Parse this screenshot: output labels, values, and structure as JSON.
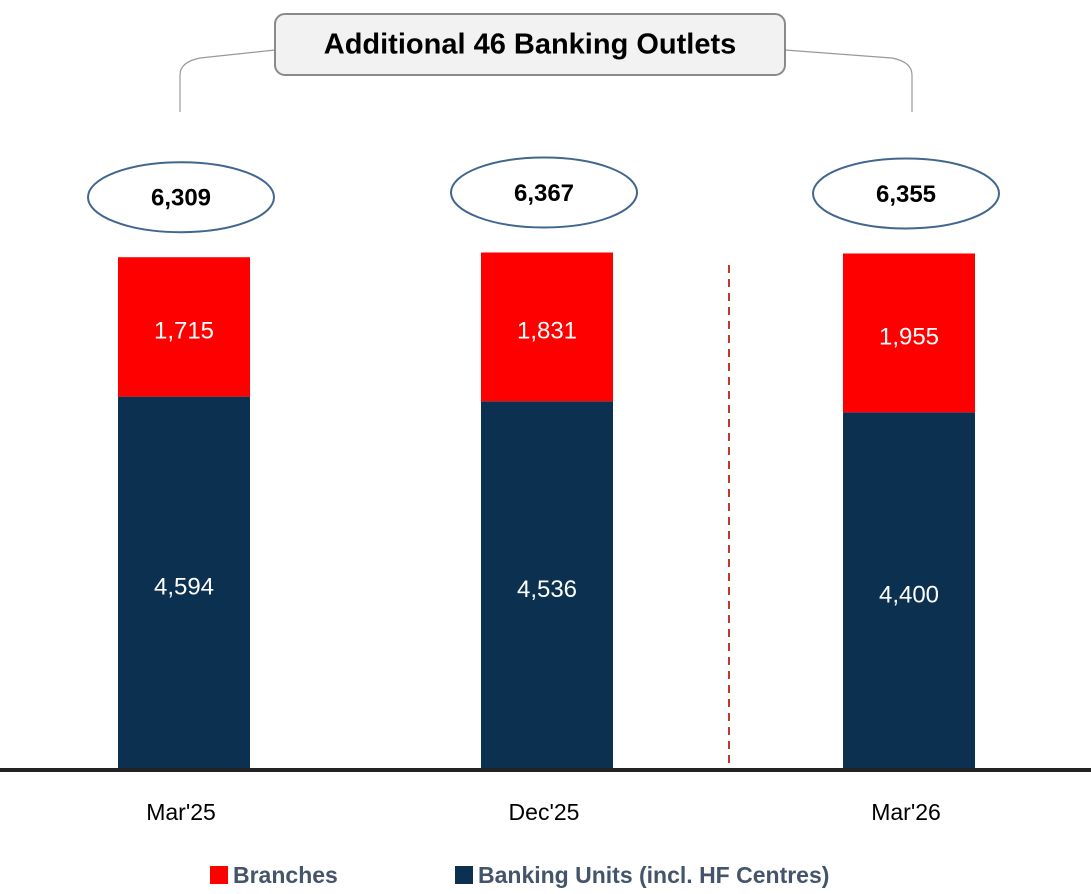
{
  "chart_data": {
    "type": "stacked_bar",
    "annotation": "Additional 46 Banking Outlets",
    "categories": [
      "Mar'25",
      "Dec'25",
      "Mar'26"
    ],
    "series": [
      {
        "name": "Branches",
        "color": "#ff0000",
        "values": [
          1715,
          1831,
          1955
        ],
        "value_labels": [
          "1,715",
          "1,831",
          "1,955"
        ]
      },
      {
        "name": "Banking Units (incl. HF Centres)",
        "color": "#0b3050",
        "values": [
          4594,
          4536,
          4400
        ],
        "value_labels": [
          "4,594",
          "4,536",
          "4,400"
        ]
      }
    ],
    "totals": {
      "values": [
        6309,
        6367,
        6355
      ],
      "value_labels": [
        "6,309",
        "6,367",
        "6,355"
      ]
    }
  }
}
